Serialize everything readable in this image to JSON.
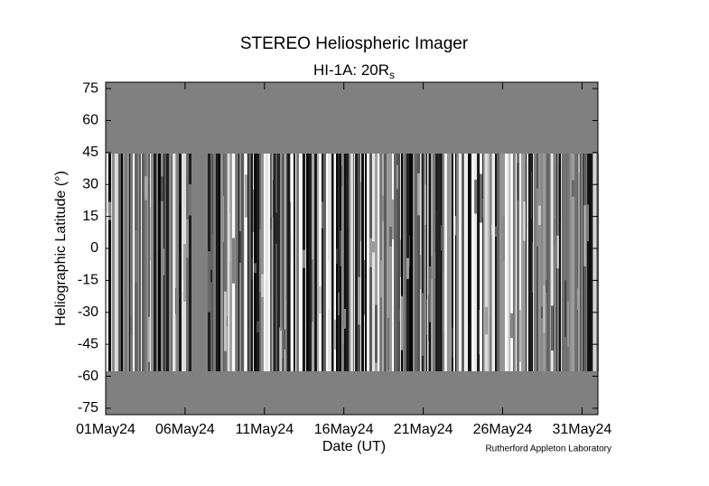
{
  "chart_data": {
    "type": "image-map",
    "title": "STEREO Heliospheric Imager",
    "subtitle": {
      "text": "HI-1A: 20R",
      "subscript": "s"
    },
    "x_label": "Date (UT)",
    "y_label": "Heliographic Latitude (°)",
    "credit": "Rutherford Appleton Laboratory",
    "xlim": [
      "2024-05-01",
      "2024-06-01"
    ],
    "xticks": [
      {
        "value": "2024-05-01",
        "label": "01May24"
      },
      {
        "value": "2024-05-06",
        "label": "06May24"
      },
      {
        "value": "2024-05-11",
        "label": "11May24"
      },
      {
        "value": "2024-05-16",
        "label": "16May24"
      },
      {
        "value": "2024-05-21",
        "label": "21May24"
      },
      {
        "value": "2024-05-26",
        "label": "26May24"
      },
      {
        "value": "2024-05-31",
        "label": "31May24"
      }
    ],
    "ylim": [
      -78,
      78
    ],
    "yticks": [
      75,
      60,
      45,
      30,
      15,
      0,
      -15,
      -30,
      -45,
      -60,
      -75
    ]
  }
}
